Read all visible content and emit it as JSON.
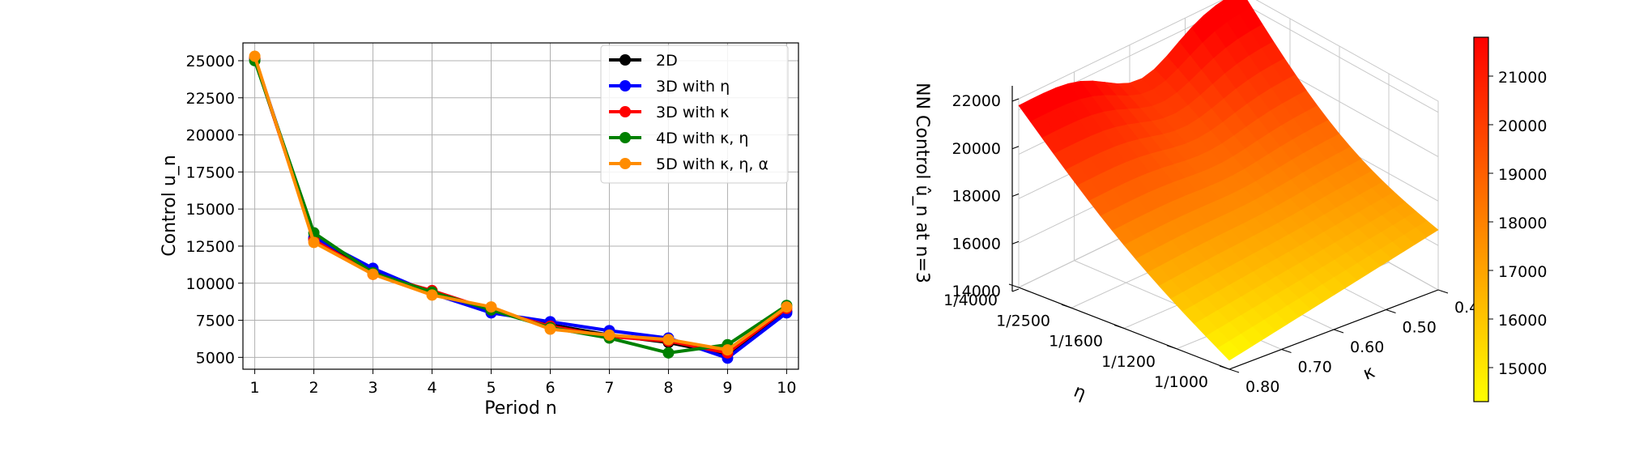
{
  "chart_data": [
    {
      "type": "line",
      "xlabel": "Period n",
      "ylabel": "Control u_n",
      "x": [
        1,
        2,
        3,
        4,
        5,
        6,
        7,
        8,
        9,
        10
      ],
      "xticks": [
        "1",
        "2",
        "3",
        "4",
        "5",
        "6",
        "7",
        "8",
        "9",
        "10"
      ],
      "yticks": [
        "5000",
        "7500",
        "10000",
        "12500",
        "15000",
        "17500",
        "20000",
        "22500",
        "25000"
      ],
      "ylim": [
        4200,
        26200
      ],
      "grid": true,
      "legend_position": "top-right",
      "series": [
        {
          "name": "2D",
          "color": "#000000",
          "values": [
            25100,
            13000,
            10800,
            9400,
            8100,
            7200,
            6500,
            6000,
            5200,
            8100
          ]
        },
        {
          "name": "3D with η",
          "color": "#0000ff",
          "values": [
            25200,
            13100,
            11000,
            9300,
            8000,
            7400,
            6800,
            6300,
            4950,
            8000
          ]
        },
        {
          "name": "3D with κ",
          "color": "#ff0000",
          "values": [
            25150,
            12900,
            10600,
            9500,
            8200,
            7100,
            6400,
            6100,
            5300,
            8300
          ]
        },
        {
          "name": "4D with κ, η",
          "color": "#008000",
          "values": [
            25000,
            13400,
            10700,
            9400,
            8200,
            7000,
            6300,
            5300,
            5850,
            8500
          ]
        },
        {
          "name": "5D with κ, η, α",
          "color": "#ff8c00",
          "values": [
            25300,
            12750,
            10600,
            9200,
            8400,
            6900,
            6500,
            6200,
            5500,
            8400
          ]
        }
      ]
    },
    {
      "type": "surface",
      "zlabel": "NN Control û_n at n=3",
      "xlabel": "κ",
      "ylabel": "η",
      "kappa_ticks": [
        "0.40",
        "0.50",
        "0.60",
        "0.70",
        "0.80"
      ],
      "eta_ticks": [
        "1/4000",
        "1/2500",
        "1/1600",
        "1/1200",
        "1/1000"
      ],
      "zticks": [
        "14000",
        "16000",
        "18000",
        "20000",
        "22000"
      ],
      "zlim": [
        14000,
        22500
      ],
      "corner_values": {
        "kappa_0.80_eta_1/4000": 22200,
        "kappa_0.40_eta_1/4000": 22600,
        "kappa_0.40_eta_1/1000": 16700,
        "kappa_0.80_eta_1/1000": 14400
      },
      "colorbar": {
        "ticks": [
          "15000",
          "16000",
          "17000",
          "18000",
          "19000",
          "20000",
          "21000"
        ],
        "range": [
          14300,
          21800
        ],
        "colormap": "autumn_r"
      }
    }
  ]
}
